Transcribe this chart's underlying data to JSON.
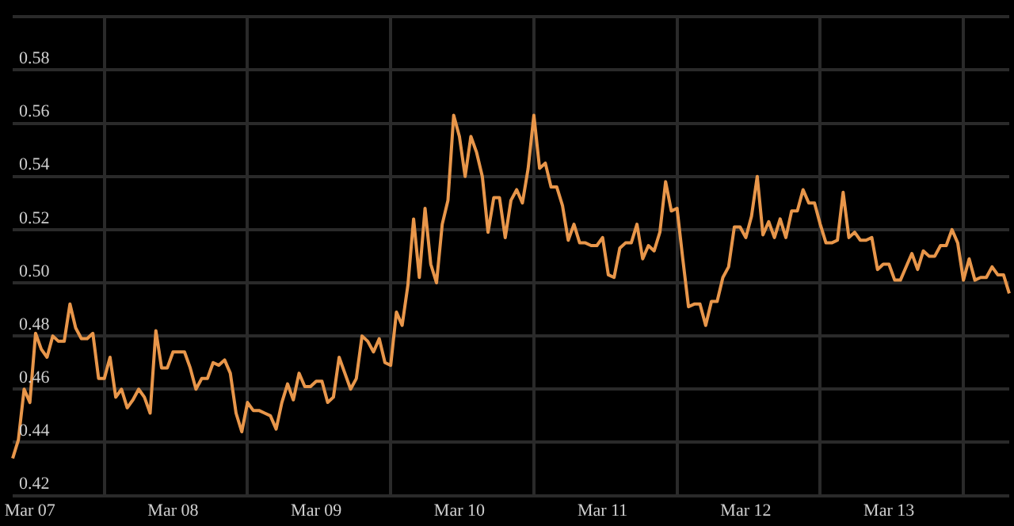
{
  "chart_data": {
    "type": "line",
    "categories": [
      null,
      null,
      null,
      "Mar 07",
      null,
      null,
      null,
      null,
      null,
      null,
      null,
      null,
      null,
      null,
      null,
      null,
      null,
      null,
      null,
      null,
      null,
      null,
      null,
      null,
      null,
      null,
      null,
      null,
      "Mar 08",
      null,
      null,
      null,
      null,
      null,
      null,
      null,
      null,
      null,
      null,
      null,
      null,
      null,
      null,
      null,
      null,
      null,
      null,
      null,
      null,
      null,
      null,
      null,
      null,
      "Mar 09",
      null,
      null,
      null,
      null,
      null,
      null,
      null,
      null,
      null,
      null,
      null,
      null,
      null,
      null,
      null,
      null,
      null,
      null,
      null,
      null,
      null,
      null,
      null,
      null,
      "Mar 10",
      null,
      null,
      null,
      null,
      null,
      null,
      null,
      null,
      null,
      null,
      null,
      null,
      null,
      null,
      null,
      null,
      null,
      null,
      null,
      null,
      null,
      null,
      null,
      null,
      "Mar 11",
      null,
      null,
      null,
      null,
      null,
      null,
      null,
      null,
      null,
      null,
      null,
      null,
      null,
      null,
      null,
      null,
      null,
      null,
      null,
      null,
      null,
      null,
      null,
      null,
      "Mar 12",
      null,
      null,
      null,
      null,
      null,
      null,
      null,
      null,
      null,
      null,
      null,
      null,
      null,
      null,
      null,
      null,
      null,
      null,
      null,
      null,
      null,
      null,
      null,
      null,
      "Mar 13",
      null,
      null,
      null,
      null,
      null,
      null,
      null,
      null,
      null,
      null,
      null,
      null,
      null,
      null,
      null,
      null,
      null,
      null,
      null,
      null,
      null
    ],
    "series": [
      {
        "color": "#e8964a",
        "values": [
          0.434,
          0.441,
          0.46,
          0.455,
          0.481,
          0.475,
          0.472,
          0.48,
          0.478,
          0.478,
          0.492,
          0.483,
          0.479,
          0.479,
          0.481,
          0.464,
          0.464,
          0.472,
          0.457,
          0.46,
          0.453,
          0.456,
          0.46,
          0.457,
          0.451,
          0.482,
          0.468,
          0.468,
          0.474,
          0.474,
          0.474,
          0.468,
          0.46,
          0.464,
          0.464,
          0.47,
          0.469,
          0.471,
          0.466,
          0.451,
          0.444,
          0.455,
          0.452,
          0.452,
          0.451,
          0.45,
          0.445,
          0.455,
          0.462,
          0.456,
          0.466,
          0.461,
          0.461,
          0.463,
          0.463,
          0.455,
          0.457,
          0.472,
          0.466,
          0.46,
          0.464,
          0.48,
          0.478,
          0.474,
          0.479,
          0.47,
          0.469,
          0.489,
          0.484,
          0.499,
          0.524,
          0.502,
          0.528,
          0.507,
          0.5,
          0.522,
          0.531,
          0.563,
          0.555,
          0.54,
          0.555,
          0.549,
          0.54,
          0.519,
          0.532,
          0.532,
          0.517,
          0.531,
          0.535,
          0.53,
          0.543,
          0.563,
          0.543,
          0.545,
          0.536,
          0.536,
          0.529,
          0.516,
          0.522,
          0.515,
          0.515,
          0.514,
          0.514,
          0.517,
          0.503,
          0.502,
          0.513,
          0.515,
          0.515,
          0.522,
          0.509,
          0.514,
          0.512,
          0.519,
          0.538,
          0.527,
          0.528,
          0.509,
          0.491,
          0.492,
          0.492,
          0.484,
          0.493,
          0.493,
          0.502,
          0.506,
          0.521,
          0.521,
          0.517,
          0.525,
          0.54,
          0.518,
          0.523,
          0.517,
          0.524,
          0.517,
          0.527,
          0.527,
          0.535,
          0.53,
          0.53,
          0.522,
          0.515,
          0.515,
          0.516,
          0.534,
          0.517,
          0.519,
          0.516,
          0.516,
          0.517,
          0.505,
          0.507,
          0.507,
          0.501,
          0.501,
          0.506,
          0.511,
          0.505,
          0.512,
          0.51,
          0.51,
          0.514,
          0.514,
          0.52,
          0.515,
          0.501,
          0.509,
          0.501,
          0.502,
          0.502,
          0.506,
          0.503,
          0.503,
          0.496
        ]
      }
    ],
    "ylim": [
      0.42,
      0.6
    ],
    "yticks": [
      0.42,
      0.44,
      0.46,
      0.48,
      {
        "value": 0.5,
        "label": "0.50"
      },
      0.52,
      0.54,
      0.56,
      0.58,
      {
        "value": 0.6,
        "label": null
      }
    ],
    "grid": true,
    "marker": "none",
    "line_style": "solid"
  }
}
